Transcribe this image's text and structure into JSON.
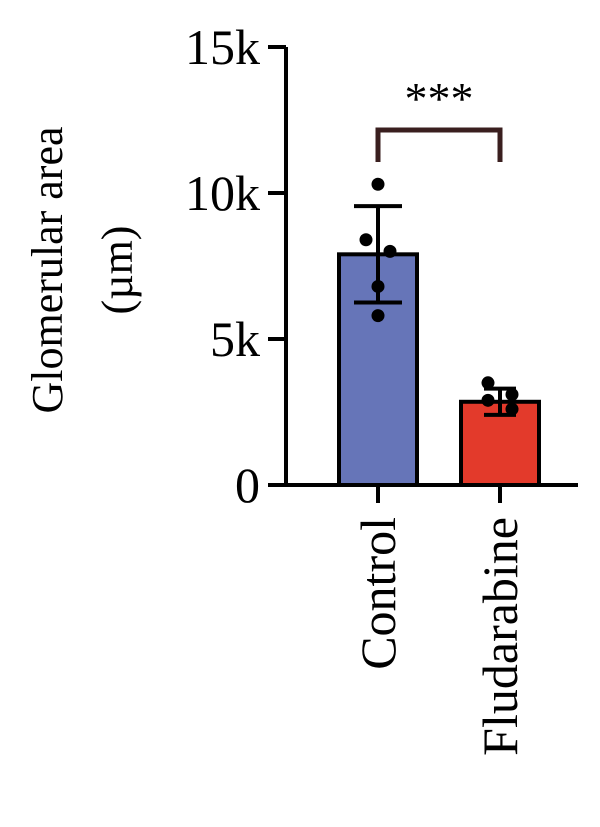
{
  "chart_data": {
    "type": "bar",
    "ylabel_line1": "Glomerular area",
    "ylabel_line2": "(µm)",
    "categories": [
      "Control",
      "Fludarabine"
    ],
    "values": [
      7900,
      2850
    ],
    "errors": [
      1650,
      450
    ],
    "points": [
      [
        10300,
        8400,
        8000,
        6800,
        5800
      ],
      [
        3500,
        3100,
        2900,
        2600
      ]
    ],
    "colors": [
      "#6675b8",
      "#e33a2b"
    ],
    "yticks": [
      0,
      5000,
      10000,
      15000
    ],
    "yticklabels": [
      "0",
      "5k",
      "10k",
      "15k"
    ],
    "ylim": [
      0,
      15000
    ],
    "significance": "***"
  }
}
